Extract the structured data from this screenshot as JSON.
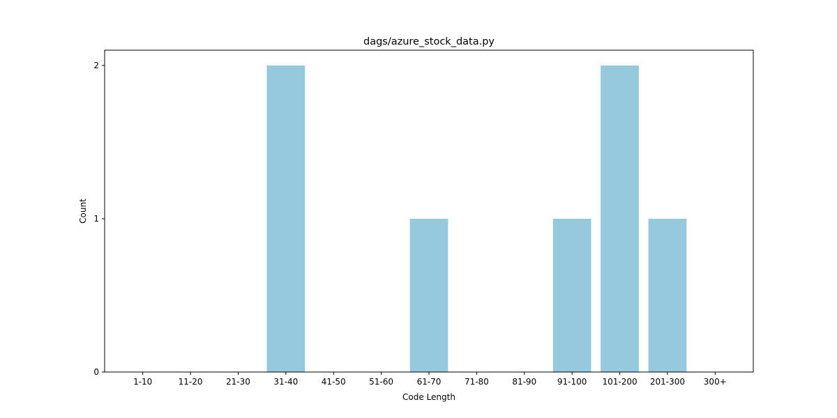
{
  "chart_data": {
    "type": "bar",
    "title": "dags/azure_stock_data.py",
    "xlabel": "Code Length",
    "ylabel": "Count",
    "categories": [
      "1-10",
      "11-20",
      "21-30",
      "31-40",
      "41-50",
      "51-60",
      "61-70",
      "71-80",
      "81-90",
      "91-100",
      "101-200",
      "201-300",
      "300+"
    ],
    "values": [
      0,
      0,
      0,
      2,
      0,
      0,
      1,
      0,
      0,
      1,
      2,
      1,
      0
    ],
    "ylim": [
      0,
      2.1
    ],
    "yticks": [
      "0",
      "1",
      "2"
    ],
    "grid": false,
    "legend": "none",
    "bar_color": "#96c9de",
    "axis_color": "#000000"
  }
}
